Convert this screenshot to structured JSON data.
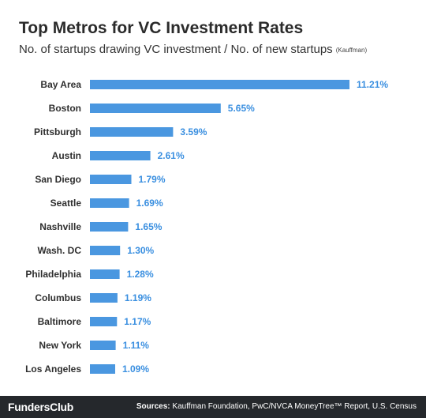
{
  "header": {
    "title": "Top Metros for VC Investment Rates",
    "subtitle": "No. of startups drawing VC investment / No. of new startups",
    "subtitle_source": "(Kauffman)"
  },
  "footer": {
    "logo": "FundersClub",
    "sources_label": "Sources:",
    "sources_text": "Kauffman Foundation, PwC/NVCA MoneyTree™ Report, U.S. Census"
  },
  "colors": {
    "bar": "#4a97e0",
    "value_label": "#3a8fe0",
    "footer_bg": "#25282c"
  },
  "chart_data": {
    "type": "bar",
    "orientation": "horizontal",
    "categories": [
      "Bay Area",
      "Boston",
      "Pittsburgh",
      "Austin",
      "San Diego",
      "Seattle",
      "Nashville",
      "Wash. DC",
      "Philadelphia",
      "Columbus",
      "Baltimore",
      "New York",
      "Los Angeles"
    ],
    "values": [
      11.21,
      5.65,
      3.59,
      2.61,
      1.79,
      1.69,
      1.65,
      1.3,
      1.28,
      1.19,
      1.17,
      1.11,
      1.09
    ],
    "value_labels": [
      "11.21%",
      "5.65%",
      "3.59%",
      "2.61%",
      "1.79%",
      "1.69%",
      "1.65%",
      "1.30%",
      "1.28%",
      "1.19%",
      "1.17%",
      "1.11%",
      "1.09%"
    ],
    "xlim": [
      0,
      11.21
    ],
    "grid": false,
    "legend": "none"
  }
}
